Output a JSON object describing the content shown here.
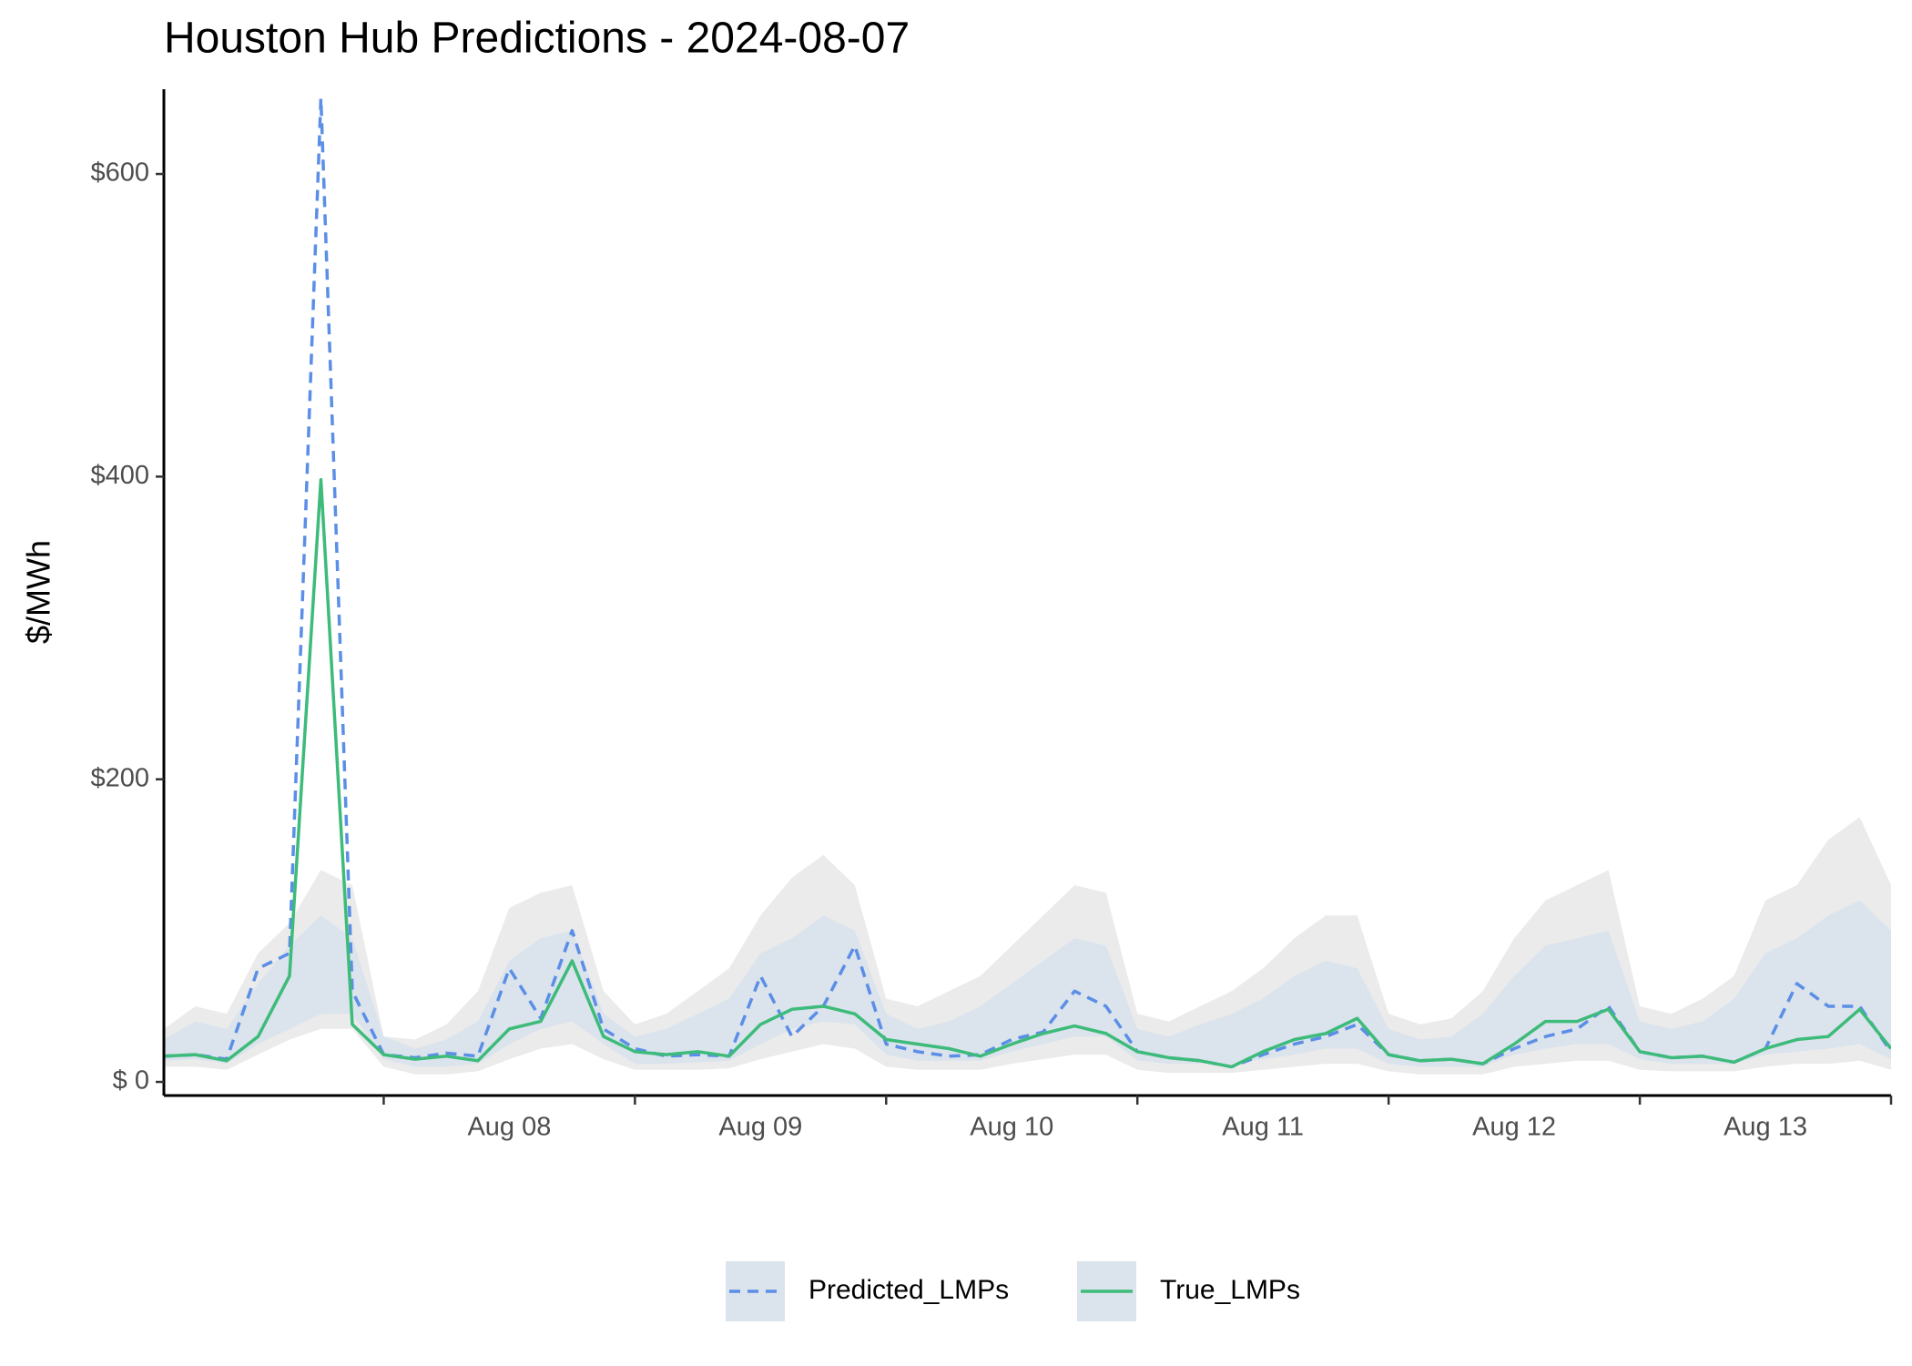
{
  "chart_data": {
    "type": "line",
    "title": "Houston Hub Predictions - 2024-08-07",
    "y_label": "$/MWh",
    "categories": [
      null,
      null,
      null,
      null,
      null,
      null,
      null,
      null,
      null,
      null,
      null,
      "Aug 08",
      null,
      null,
      null,
      null,
      null,
      null,
      null,
      "Aug 09",
      null,
      null,
      null,
      null,
      null,
      null,
      null,
      "Aug 10",
      null,
      null,
      null,
      null,
      null,
      null,
      null,
      "Aug 11",
      null,
      null,
      null,
      null,
      null,
      null,
      null,
      "Aug 12",
      null,
      null,
      null,
      null,
      null,
      null,
      null,
      "Aug 13",
      null,
      null,
      null,
      null
    ],
    "series": [
      {
        "name": "Predicted_LMPs",
        "color": "#5b8ee6",
        "dash": true,
        "values": [
          17,
          18,
          15,
          75,
          85,
          650,
          60,
          18,
          16,
          19,
          17,
          75,
          42,
          100,
          35,
          22,
          17,
          18,
          17,
          70,
          30,
          50,
          90,
          25,
          20,
          17,
          18,
          28,
          33,
          60,
          50,
          20,
          16,
          14,
          10,
          18,
          25,
          30,
          38,
          18,
          14,
          15,
          12,
          22,
          30,
          35,
          50,
          20,
          16,
          17,
          13,
          22,
          65,
          50,
          50,
          20
        ]
      },
      {
        "name": "True_LMPs",
        "color": "#3dbb7a",
        "dash": false,
        "values": [
          17,
          18,
          14,
          30,
          70,
          398,
          38,
          18,
          15,
          17,
          14,
          35,
          40,
          80,
          30,
          20,
          18,
          20,
          17,
          38,
          48,
          50,
          45,
          28,
          25,
          22,
          17,
          25,
          32,
          37,
          32,
          20,
          16,
          14,
          10,
          20,
          28,
          32,
          42,
          18,
          14,
          15,
          12,
          25,
          40,
          40,
          48,
          20,
          16,
          17,
          13,
          22,
          28,
          30,
          48,
          22
        ]
      }
    ],
    "bands": [
      {
        "color": "#ebebeb",
        "upper": [
          35,
          50,
          45,
          85,
          105,
          140,
          130,
          30,
          28,
          38,
          60,
          115,
          125,
          130,
          60,
          38,
          45,
          60,
          75,
          110,
          135,
          150,
          130,
          55,
          50,
          60,
          70,
          90,
          110,
          130,
          125,
          45,
          40,
          50,
          60,
          75,
          95,
          110,
          110,
          45,
          38,
          42,
          60,
          95,
          120,
          130,
          140,
          50,
          45,
          55,
          70,
          120,
          130,
          160,
          175,
          130
        ],
        "lower": [
          10,
          10,
          8,
          18,
          28,
          35,
          35,
          10,
          5,
          5,
          7,
          15,
          22,
          25,
          15,
          8,
          8,
          8,
          9,
          15,
          20,
          25,
          22,
          10,
          8,
          8,
          8,
          12,
          15,
          18,
          18,
          8,
          6,
          6,
          6,
          8,
          10,
          12,
          12,
          7,
          5,
          5,
          5,
          10,
          12,
          14,
          14,
          8,
          7,
          7,
          7,
          10,
          12,
          12,
          14,
          8
        ]
      },
      {
        "color": "#dbe3ec",
        "upper": [
          28,
          40,
          35,
          65,
          90,
          110,
          95,
          30,
          22,
          28,
          40,
          80,
          95,
          100,
          45,
          30,
          35,
          45,
          55,
          85,
          95,
          110,
          100,
          45,
          35,
          40,
          50,
          65,
          80,
          95,
          90,
          35,
          30,
          38,
          45,
          55,
          70,
          80,
          75,
          35,
          28,
          30,
          45,
          70,
          90,
          95,
          100,
          40,
          35,
          40,
          55,
          85,
          95,
          110,
          120,
          100
        ],
        "lower": [
          14,
          15,
          12,
          25,
          35,
          45,
          45,
          15,
          10,
          10,
          12,
          25,
          35,
          40,
          25,
          12,
          12,
          13,
          14,
          25,
          35,
          40,
          38,
          18,
          14,
          14,
          14,
          20,
          25,
          30,
          30,
          14,
          12,
          12,
          12,
          15,
          18,
          22,
          22,
          12,
          10,
          10,
          10,
          18,
          22,
          25,
          25,
          15,
          12,
          12,
          12,
          18,
          20,
          22,
          25,
          15
        ]
      }
    ],
    "ylim": [
      -9,
      656
    ],
    "yticks": [
      {
        "value": 0,
        "label": "$  0"
      },
      {
        "value": 200,
        "label": "$200"
      },
      {
        "value": 400,
        "label": "$400"
      },
      {
        "value": 600,
        "label": "$600"
      }
    ],
    "grid": false,
    "legend": "bottom"
  }
}
